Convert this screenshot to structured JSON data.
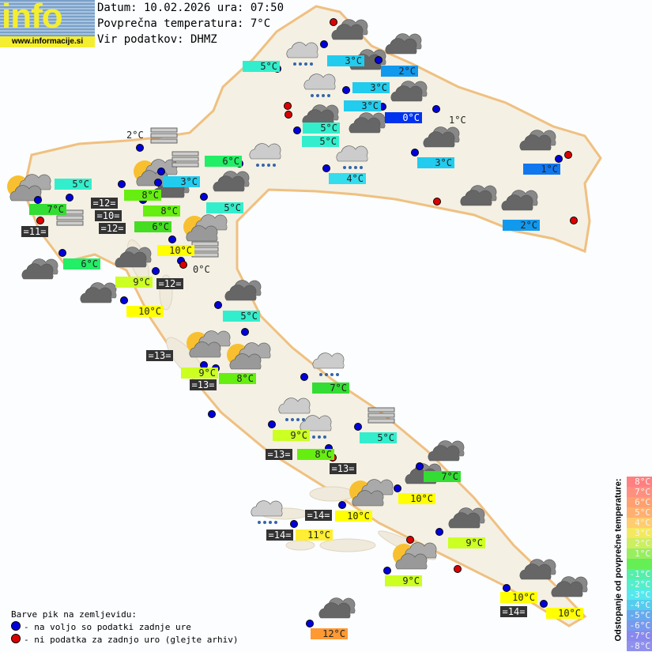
{
  "header": {
    "logo_text": "info",
    "logo_url": "www.informacije.si",
    "date_line": "Datum: 10.02.2026 ura: 07:50",
    "avg_temp_line": "Povprečna temperatura: 7°C",
    "source_line": "Vir podatkov: DHMZ"
  },
  "colors": {
    "dot_available": "#0000dd",
    "dot_missing": "#dd0000",
    "country_fill": "#f4f0e4",
    "border": "#f0c080"
  },
  "temperatures": [
    {
      "text": "5°C",
      "color": "#33eecc"
    },
    {
      "text": "3°C",
      "color": "#22ccee"
    },
    {
      "text": "2°C",
      "color": "#1199ee"
    },
    {
      "text": "3°C",
      "color": "#22ccee"
    },
    {
      "text": "3°C",
      "color": "#22ccee"
    },
    {
      "text": "0°C",
      "color": "#0033ee"
    },
    {
      "text": "5°C",
      "color": "#33eecc"
    },
    {
      "text": "5°C",
      "color": "#33eecc"
    },
    {
      "text": "6°C",
      "color": "#22ee66"
    },
    {
      "text": "3°C",
      "color": "#22ccee"
    },
    {
      "text": "4°C",
      "color": "#33ddee"
    },
    {
      "text": "1°C",
      "color": "#1177ee"
    },
    {
      "text": "2°C",
      "color": "#1199ee"
    },
    {
      "text": "5°C",
      "color": "#33eecc"
    },
    {
      "text": "5°C",
      "color": "#33eecc"
    },
    {
      "text": "3°C",
      "color": "#22ccee"
    },
    {
      "text": "8°C",
      "color": "#66ee11"
    },
    {
      "text": "8°C",
      "color": "#66ee11"
    },
    {
      "text": "6°C",
      "color": "#44dd22"
    },
    {
      "text": "=12=",
      "color": "#333333"
    },
    {
      "text": "=10=",
      "color": "#333333"
    },
    {
      "text": "=12=",
      "color": "#333333"
    },
    {
      "text": "7°C",
      "color": "#33dd33"
    },
    {
      "text": "=11=",
      "color": "#333333"
    },
    {
      "text": "6°C",
      "color": "#22ee66"
    },
    {
      "text": "10°C",
      "color": "#ffff00"
    },
    {
      "text": "9°C",
      "color": "#ccff22"
    },
    {
      "text": "=12=",
      "color": "#333333"
    },
    {
      "text": "10°C",
      "color": "#ffff00"
    },
    {
      "text": "5°C",
      "color": "#33eecc"
    },
    {
      "text": "=13=",
      "color": "#333333"
    },
    {
      "text": "9°C",
      "color": "#ccff22"
    },
    {
      "text": "=13=",
      "color": "#333333"
    },
    {
      "text": "8°C",
      "color": "#66ee11"
    },
    {
      "text": "7°C",
      "color": "#33dd33"
    },
    {
      "text": "9°C",
      "color": "#ccff22"
    },
    {
      "text": "5°C",
      "color": "#33eecc"
    },
    {
      "text": "=13=",
      "color": "#333333"
    },
    {
      "text": "8°C",
      "color": "#66ee11"
    },
    {
      "text": "=13=",
      "color": "#333333"
    },
    {
      "text": "7°C",
      "color": "#33dd33"
    },
    {
      "text": "10°C",
      "color": "#ffff00"
    },
    {
      "text": "10°C",
      "color": "#ffff00"
    },
    {
      "text": "=14=",
      "color": "#333333"
    },
    {
      "text": "=14=",
      "color": "#333333"
    },
    {
      "text": "11°C",
      "color": "#ffee33"
    },
    {
      "text": "9°C",
      "color": "#ccff22"
    },
    {
      "text": "9°C",
      "color": "#ccff22"
    },
    {
      "text": "10°C",
      "color": "#ffff00"
    },
    {
      "text": "=14=",
      "color": "#333333"
    },
    {
      "text": "10°C",
      "color": "#ffff00"
    },
    {
      "text": "12°C",
      "color": "#ff9933"
    }
  ],
  "plain_temperatures": [
    "1°C",
    "2°C",
    "0°C"
  ],
  "station_dots": [
    "available",
    "available",
    "available",
    "available",
    "available",
    "available",
    "available",
    "available",
    "missing",
    "missing",
    "missing",
    "available",
    "available",
    "available",
    "available",
    "missing",
    "missing",
    "missing",
    "available",
    "available",
    "available",
    "available",
    "available",
    "available",
    "available",
    "available",
    "missing",
    "available",
    "available",
    "available",
    "available",
    "available",
    "available",
    "available",
    "available",
    "available",
    "available",
    "missing",
    "available",
    "available",
    "available",
    "missing",
    "available",
    "available",
    "available",
    "available",
    "available",
    "missing",
    "available",
    "available",
    "missing",
    "available",
    "available",
    "available"
  ],
  "weather_icons": [
    "overcast",
    "overcast",
    "overcast",
    "overcast",
    "overcast",
    "overcast",
    "overcast",
    "overcast",
    "overcast",
    "overcast",
    "overcast",
    "overcast",
    "overcast",
    "overcast",
    "overcast",
    "overcast",
    "overcast",
    "overcast",
    "overcast",
    "overcast",
    "overcast",
    "overcast",
    "rain",
    "rain",
    "rain",
    "rain",
    "rain",
    "rain",
    "rain",
    "rain",
    "partly-sunny",
    "partly-sunny",
    "partly-sunny",
    "partly-sunny",
    "partly-sunny",
    "partly-sunny",
    "partly-sunny",
    "fog",
    "fog",
    "fog",
    "fog",
    "fog"
  ],
  "legend": {
    "title": "Barve pik na zemljevidu:",
    "available": "- na voljo so podatki zadnje ure",
    "missing": "- ni podatka za zadnjo uro (glejte arhiv)"
  },
  "scale": {
    "title": "Odstopanje od povprečne temperature:",
    "steps": [
      {
        "label": "8°C",
        "color": "#ff8080"
      },
      {
        "label": "7°C",
        "color": "#ff9080"
      },
      {
        "label": "6°C",
        "color": "#ffa070"
      },
      {
        "label": "5°C",
        "color": "#ffb070"
      },
      {
        "label": "4°C",
        "color": "#ffcc70"
      },
      {
        "label": "3°C",
        "color": "#f4e860"
      },
      {
        "label": "2°C",
        "color": "#ccee60"
      },
      {
        "label": "1°C",
        "color": "#99ee60"
      },
      {
        "label": "",
        "color": "#66ee55"
      },
      {
        "label": "-1°C",
        "color": "#55eeaa"
      },
      {
        "label": "-2°C",
        "color": "#55eecc"
      },
      {
        "label": "-3°C",
        "color": "#55e8ee"
      },
      {
        "label": "-4°C",
        "color": "#55ccee"
      },
      {
        "label": "-5°C",
        "color": "#66aaee"
      },
      {
        "label": "-6°C",
        "color": "#7799ee"
      },
      {
        "label": "-7°C",
        "color": "#8888ee"
      },
      {
        "label": "-8°C",
        "color": "#9090ee"
      }
    ]
  }
}
